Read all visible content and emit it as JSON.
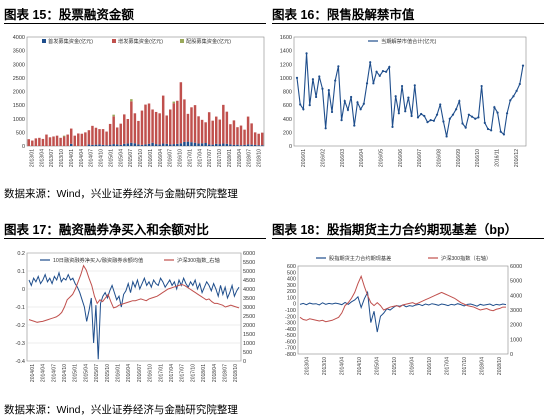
{
  "source_top": "数据来源：Wind，兴业证券经济与金融研究院整理",
  "source_bottom": "数据来源：Wind，兴业证券经济与金融研究院整理",
  "chart_data": [
    {
      "id": "c15",
      "title": "图表 15：股票融资金额",
      "type": "bar",
      "stacked": true,
      "legend": [
        "首发募集资金(亿元)",
        "增发募集资金(亿元)",
        "配股募集资金(亿元)"
      ],
      "colors": [
        "#1f4e8c",
        "#c0504d",
        "#9aa95a"
      ],
      "ylim": [
        0,
        4000
      ],
      "yticks": [
        0,
        500,
        1000,
        1500,
        2000,
        2500,
        3000,
        3500,
        4000
      ],
      "xticks": [
        "2013/01",
        "2013/04",
        "2013/07",
        "2013/10",
        "2014/01",
        "2014/04",
        "2014/07",
        "2014/10",
        "2015/01",
        "2015/04",
        "2015/07",
        "2015/10",
        "2016/01",
        "2016/04",
        "2016/07",
        "2016/10",
        "2017/01",
        "2017/04",
        "2017/07",
        "2017/10",
        "2018/01",
        "2018/04",
        "2018/07",
        "2018/10"
      ],
      "series": [
        {
          "name": "首发募集资金(亿元)",
          "values": [
            0,
            0,
            0,
            0,
            0,
            0,
            0,
            0,
            0,
            0,
            0,
            0,
            80,
            0,
            0,
            0,
            0,
            60,
            40,
            50,
            60,
            40,
            30,
            50,
            70,
            60,
            40,
            80,
            90,
            120,
            100,
            60,
            40,
            60,
            80,
            120,
            70,
            60,
            90,
            80,
            60,
            70,
            80,
            100,
            150,
            160,
            140,
            120,
            90,
            100,
            110,
            60,
            50,
            80,
            70,
            90,
            80,
            60,
            40,
            50,
            30,
            40,
            60,
            50,
            40,
            30,
            30
          ]
        },
        {
          "name": "增发募集资金(亿元)",
          "values": [
            250,
            200,
            280,
            300,
            260,
            420,
            320,
            350,
            380,
            300,
            350,
            420,
            560,
            380,
            460,
            450,
            500,
            520,
            700,
            620,
            560,
            580,
            500,
            760,
            1020,
            620,
            780,
            1080,
            900,
            1520,
            1100,
            860,
            1260,
            1460,
            1480,
            1220,
            1180,
            1140,
            1760,
            1040,
            1280,
            1500,
            1580,
            2240,
            1560,
            1020,
            1280,
            1380,
            1000,
            860,
            760,
            1180,
            880,
            1000,
            900,
            1420,
            1180,
            740,
            900,
            640,
            720,
            560,
            1020,
            780,
            460,
            420,
            460
          ]
        },
        {
          "name": "配股募集资金(亿元)",
          "values": [
            0,
            0,
            0,
            0,
            0,
            0,
            0,
            0,
            0,
            0,
            30,
            0,
            0,
            0,
            0,
            0,
            0,
            0,
            0,
            0,
            0,
            0,
            0,
            0,
            60,
            0,
            0,
            0,
            0,
            80,
            0,
            0,
            0,
            0,
            0,
            0,
            0,
            0,
            0,
            0,
            0,
            60,
            0,
            0,
            0,
            0,
            0,
            0,
            0,
            0,
            0,
            0,
            0,
            0,
            0,
            0,
            0,
            0,
            0,
            0,
            0,
            0,
            0,
            0,
            0,
            0,
            0
          ]
        }
      ]
    },
    {
      "id": "c16",
      "title": "图表 16：限售股解禁市值",
      "type": "line",
      "legend": [
        "当期解禁市值合计(亿元)"
      ],
      "colors": [
        "#1f4e8c"
      ],
      "ylim": [
        0,
        1600
      ],
      "yticks": [
        0,
        200,
        400,
        600,
        800,
        1000,
        1200,
        1400,
        1600
      ],
      "xticks": [
        "2016/01",
        "2016/02",
        "2016/03",
        "2016/04",
        "2016/05",
        "2016/06",
        "2016/07",
        "2016/08",
        "2016/09",
        "2016/10",
        "2016/11",
        "2016/12"
      ],
      "series": [
        {
          "name": "当期解禁市值合计(亿元)",
          "values": [
            1000,
            610,
            540,
            1360,
            600,
            980,
            720,
            1020,
            840,
            260,
            820,
            500,
            960,
            1170,
            380,
            660,
            530,
            720,
            300,
            640,
            540,
            620,
            920,
            1230,
            920,
            1090,
            1030,
            1100,
            1090,
            1160,
            280,
            730,
            480,
            880,
            510,
            710,
            440,
            890,
            420,
            470,
            440,
            350,
            380,
            370,
            460,
            610,
            360,
            140,
            400,
            460,
            540,
            660,
            330,
            270,
            460,
            430,
            400,
            420,
            880,
            340,
            250,
            230,
            570,
            490,
            210,
            170,
            480,
            670,
            730,
            810,
            910,
            1180
          ]
        }
      ]
    },
    {
      "id": "c17",
      "title": "图表 17：融资融券净买入和余额对比",
      "type": "line",
      "legend": [
        "10日融资融券净买入/融资融券余额均值",
        "沪深300指数_右轴"
      ],
      "colors": [
        "#1f4e8c",
        "#c0504d"
      ],
      "ylim": [
        -0.4,
        0.2
      ],
      "yticks": [
        -0.4,
        -0.3,
        -0.2,
        -0.1,
        0,
        0.1,
        0.2
      ],
      "y2lim": [
        0,
        6000
      ],
      "y2ticks": [
        0,
        500,
        1000,
        1500,
        2000,
        2500,
        3000,
        3500,
        4000,
        4500,
        5000,
        5500,
        6000
      ],
      "xticks": [
        "2014/01",
        "2014/04",
        "2014/07",
        "2014/10",
        "2015/01",
        "2015/04",
        "2015/07",
        "2015/10",
        "2016/01",
        "2016/04",
        "2016/07",
        "2016/10",
        "2017/01",
        "2017/04",
        "2017/07",
        "2017/10",
        "2018/01",
        "2018/04",
        "2018/07",
        "2018/10"
      ],
      "series": [
        {
          "name": "10日融资融券净买入/融资融券余额均值",
          "axis": "left",
          "values": [
            0.05,
            0.02,
            0.06,
            0.04,
            0.07,
            0.03,
            0.05,
            0.08,
            0.04,
            0.06,
            0.03,
            0.07,
            0.05,
            0.09,
            0.04,
            0.06,
            0.05,
            0.08,
            0.05,
            0.06,
            0.03,
            0.01,
            -0.02,
            -0.06,
            -0.1,
            -0.18,
            -0.12,
            -0.05,
            -0.3,
            -0.09,
            -0.39,
            -0.08,
            -0.04,
            -0.02,
            -0.05,
            -0.01,
            0.02,
            -0.02,
            -0.06,
            -0.04,
            -0.1,
            -0.03,
            -0.01,
            0.03,
            -0.02,
            0.04,
            0.01,
            0.05,
            0.0,
            0.03,
            0.06,
            0.02,
            0.04,
            0.01,
            0.05,
            0.03,
            0.02,
            0.06,
            0.04,
            0.01,
            0.03,
            0.05,
            0.02,
            0.04,
            0.0,
            0.05,
            0.02,
            0.06,
            0.03,
            0.01,
            0.04,
            0.02,
            0.05,
            0.0,
            0.03,
            -0.02,
            0.01,
            0.04,
            0.02,
            -0.01,
            0.03,
            0.0,
            -0.04,
            0.02,
            -0.03,
            0.01,
            -0.05,
            -0.02,
            0.02,
            -0.04,
            -0.01,
            0.01
          ]
        },
        {
          "name": "沪深300指数_右轴",
          "axis": "right",
          "values": [
            2300,
            2250,
            2200,
            2150,
            2180,
            2200,
            2250,
            2300,
            2350,
            2400,
            2450,
            2550,
            2700,
            3000,
            3400,
            3550,
            3700,
            4000,
            4400,
            4800,
            5300,
            5050,
            4600,
            4200,
            3600,
            3200,
            3400,
            3300,
            3500,
            3700,
            3300,
            2950,
            3000,
            3100,
            3150,
            3200,
            3250,
            3300,
            3350,
            3350,
            3400,
            3450,
            3400,
            3350,
            3450,
            3500,
            3550,
            3600,
            3700,
            3800,
            3900,
            4000,
            4050,
            4100,
            4150,
            4200,
            4250,
            4200,
            4100,
            4000,
            3900,
            3800,
            3700,
            3600,
            3500,
            3400,
            3450,
            3300,
            3200,
            3200,
            3150,
            3100,
            3000,
            3050,
            3100,
            3050,
            3000,
            2950
          ]
        }
      ]
    },
    {
      "id": "c18",
      "title": "图表 18：股指期货主力合约期现基差（bp）",
      "type": "line",
      "legend": [
        "股指期货主力合约期现基差",
        "沪深300指数（右轴）"
      ],
      "colors": [
        "#1f4e8c",
        "#c0504d"
      ],
      "ylim": [
        -800,
        600
      ],
      "yticks": [
        -800,
        -700,
        -600,
        -500,
        -400,
        -300,
        -200,
        -100,
        0,
        100,
        200,
        300,
        400,
        500,
        600
      ],
      "y2lim": [
        0,
        6000
      ],
      "y2ticks": [
        0,
        1000,
        2000,
        3000,
        4000,
        5000,
        6000
      ],
      "xticks": [
        "2013/04",
        "2013/10",
        "2014/04",
        "2014/10",
        "2015/04",
        "2015/10",
        "2016/04",
        "2016/10",
        "2017/04",
        "2017/10",
        "2018/04",
        "2018/10"
      ],
      "series": [
        {
          "name": "股指期货主力合约期现基差",
          "axis": "left",
          "values": [
            -10,
            5,
            -15,
            10,
            -5,
            0,
            -20,
            15,
            -10,
            5,
            -5,
            10,
            0,
            -15,
            20,
            -10,
            30,
            60,
            110,
            -60,
            80,
            180,
            -300,
            -120,
            -450,
            -200,
            -150,
            -80,
            -100,
            -60,
            -30,
            -40,
            -20,
            -50,
            -30,
            -40,
            -20,
            -10,
            -30,
            -5,
            -20,
            0,
            -10,
            -25,
            -5,
            -15,
            -30,
            -10,
            -20,
            0,
            -15,
            -35,
            -10,
            -5,
            -20,
            -40,
            -10,
            -25,
            -15,
            -5,
            -30,
            -10,
            -20,
            -5,
            -15
          ]
        },
        {
          "name": "沪深300指数（右轴）",
          "axis": "right",
          "values": [
            2500,
            2350,
            2300,
            2400,
            2350,
            2300,
            2250,
            2300,
            2200,
            2250,
            2300,
            2400,
            2500,
            2800,
            3300,
            3500,
            3800,
            4200,
            4800,
            5300,
            4600,
            4000,
            3500,
            3300,
            3500,
            3300,
            3000,
            3100,
            3200,
            3250,
            3300,
            3200,
            3350,
            3400,
            3450,
            3500,
            3400,
            3500,
            3600,
            3700,
            3800,
            3900,
            4000,
            4100,
            4200,
            4100,
            4000,
            3900,
            3800,
            3650,
            3500,
            3400,
            3300,
            3250,
            3200,
            3100,
            3000,
            3050,
            3100,
            3000,
            2950,
            3050,
            3100,
            3200,
            3200
          ]
        }
      ]
    }
  ]
}
